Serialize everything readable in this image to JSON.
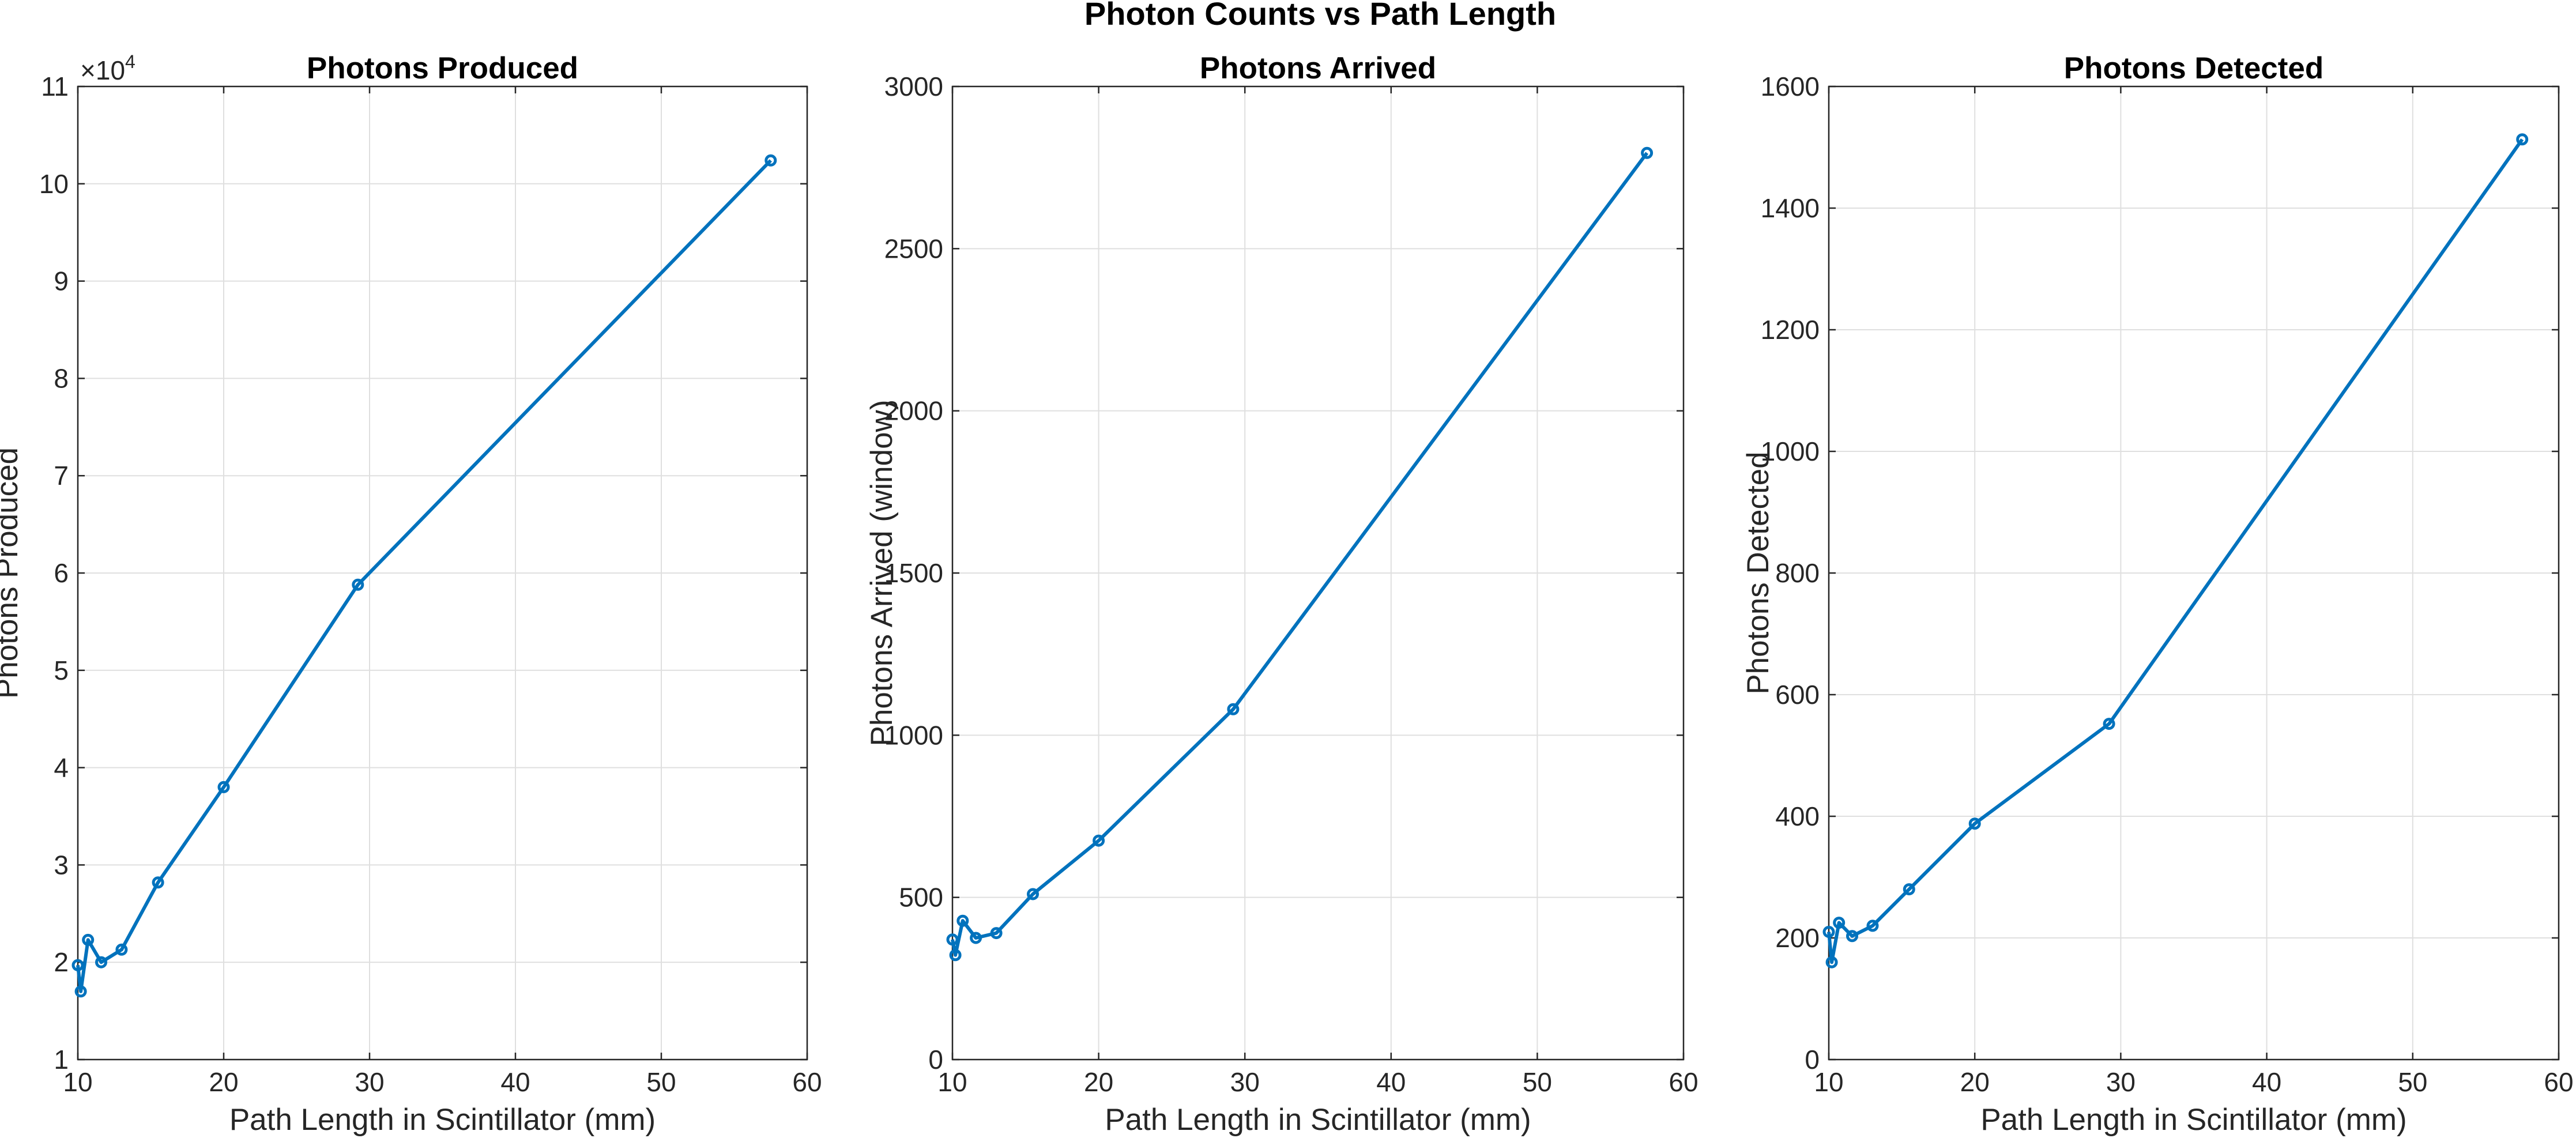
{
  "figure": {
    "suptitle": "Photon Counts vs Path Length"
  },
  "colors": {
    "series": "#0072bd"
  },
  "chart_data": [
    {
      "type": "line",
      "title": "Photons Produced",
      "xlabel": "Path Length in Scintillator (mm)",
      "ylabel": "Photons Produced",
      "xlim": [
        10,
        60
      ],
      "ylim": [
        1,
        11
      ],
      "y_exponent": "×10",
      "y_exponent_power": "4",
      "xticks": [
        10,
        20,
        30,
        40,
        50,
        60
      ],
      "yticks": [
        1,
        2,
        3,
        4,
        5,
        6,
        7,
        8,
        9,
        10,
        11
      ],
      "grid": true,
      "marker": "circle",
      "x": [
        10.0,
        10.2,
        10.7,
        11.6,
        13.0,
        15.5,
        20.0,
        29.2,
        57.5
      ],
      "y": [
        1.97,
        1.7,
        2.23,
        2.0,
        2.13,
        2.82,
        3.8,
        5.88,
        10.24
      ]
    },
    {
      "type": "line",
      "title": "Photons Arrived",
      "xlabel": "Path Length in Scintillator (mm)",
      "ylabel": "Photons Arrived (window)",
      "xlim": [
        10,
        60
      ],
      "ylim": [
        0,
        3000
      ],
      "xticks": [
        10,
        20,
        30,
        40,
        50,
        60
      ],
      "yticks": [
        0,
        500,
        1000,
        1500,
        2000,
        2500,
        3000
      ],
      "grid": true,
      "marker": "circle",
      "x": [
        10.0,
        10.2,
        10.7,
        11.6,
        13.0,
        15.5,
        20.0,
        29.2,
        57.5
      ],
      "y": [
        370,
        322,
        428,
        375,
        390,
        510,
        675,
        1080,
        2795
      ]
    },
    {
      "type": "line",
      "title": "Photons Detected",
      "xlabel": "Path Length in Scintillator (mm)",
      "ylabel": "Photons Detected",
      "xlim": [
        10,
        60
      ],
      "ylim": [
        0,
        1600
      ],
      "xticks": [
        10,
        20,
        30,
        40,
        50,
        60
      ],
      "yticks": [
        0,
        200,
        400,
        600,
        800,
        1000,
        1200,
        1400,
        1600
      ],
      "grid": true,
      "marker": "circle",
      "x": [
        10.0,
        10.2,
        10.7,
        11.6,
        13.0,
        15.5,
        20.0,
        29.2,
        57.5
      ],
      "y": [
        210,
        160,
        225,
        203,
        220,
        280,
        388,
        552,
        1513
      ]
    }
  ]
}
